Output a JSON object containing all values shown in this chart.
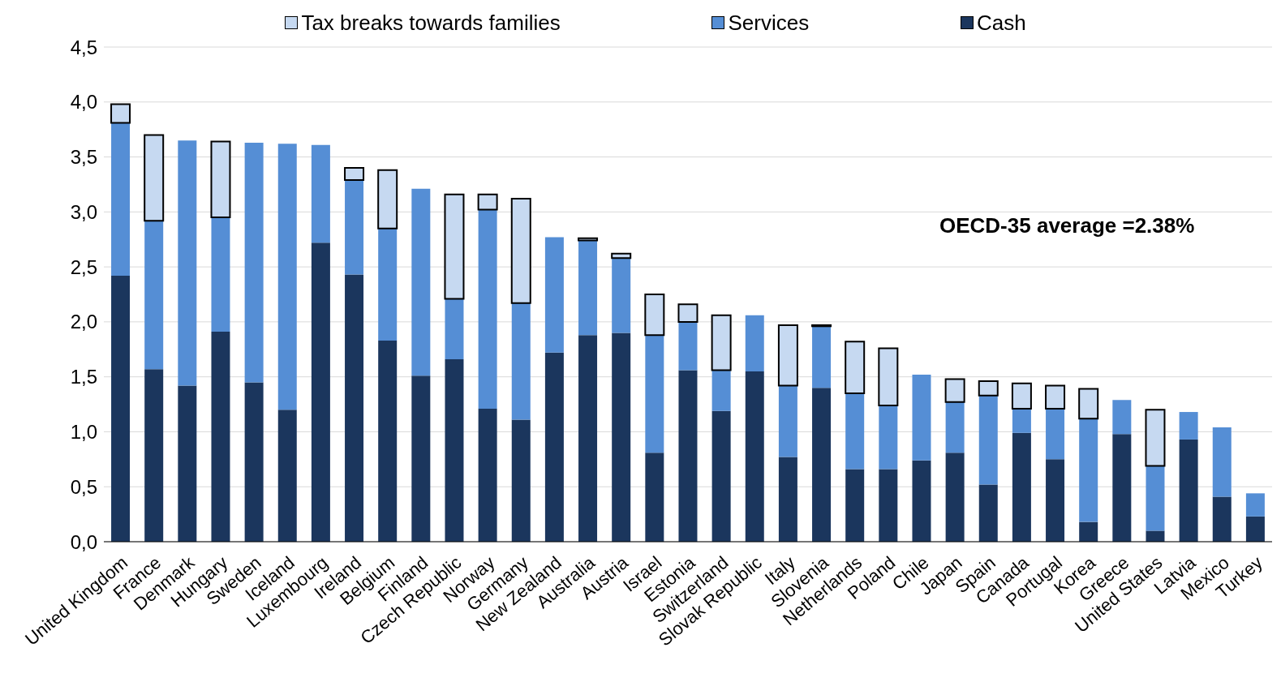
{
  "chart_data": {
    "type": "bar",
    "stacked": true,
    "categories": [
      "United Kingdom",
      "France",
      "Denmark",
      "Hungary",
      "Sweden",
      "Iceland",
      "Luxembourg",
      "Ireland",
      "Belgium",
      "Finland",
      "Czech Republic",
      "Norway",
      "Germany",
      "New Zealand",
      "Australia",
      "Austria",
      "Israel",
      "Estonia",
      "Switzerland",
      "Slovak Republic",
      "Italy",
      "Slovenia",
      "Netherlands",
      "Poland",
      "Chile",
      "Japan",
      "Spain",
      "Canada",
      "Portugal",
      "Korea",
      "Greece",
      "United States",
      "Latvia",
      "Mexico",
      "Turkey"
    ],
    "series": [
      {
        "name": "Cash",
        "color": "#1b365d",
        "values": [
          2.42,
          1.57,
          1.42,
          1.91,
          1.45,
          1.2,
          2.72,
          2.43,
          1.83,
          1.51,
          1.66,
          1.21,
          1.11,
          1.72,
          1.88,
          1.9,
          0.81,
          1.56,
          1.19,
          1.55,
          0.77,
          1.4,
          0.66,
          0.66,
          0.74,
          0.81,
          0.52,
          0.99,
          0.75,
          0.18,
          0.98,
          0.1,
          0.93,
          0.41,
          0.23
        ]
      },
      {
        "name": "Services",
        "color": "#558ed5",
        "values": [
          1.39,
          1.35,
          2.23,
          1.04,
          2.18,
          2.42,
          0.89,
          0.86,
          1.02,
          1.7,
          0.55,
          1.81,
          1.06,
          1.05,
          0.86,
          0.68,
          1.07,
          0.44,
          0.37,
          0.51,
          0.65,
          0.56,
          0.69,
          0.58,
          0.78,
          0.46,
          0.81,
          0.22,
          0.46,
          0.94,
          0.31,
          0.59,
          0.25,
          0.63,
          0.21
        ]
      },
      {
        "name": "Tax breaks towards families",
        "color": "#c6d9f1",
        "values": [
          0.17,
          0.78,
          0,
          0.69,
          0,
          0,
          0,
          0.11,
          0.53,
          0,
          0.95,
          0.14,
          0.95,
          0,
          0.02,
          0.04,
          0.37,
          0.16,
          0.5,
          0,
          0.55,
          0.01,
          0.47,
          0.52,
          0,
          0.21,
          0.13,
          0.23,
          0.21,
          0.27,
          0,
          0.51,
          0,
          0,
          0
        ]
      }
    ],
    "ylim": [
      0,
      4.5
    ],
    "yticks": [
      {
        "value": 0,
        "label": "0,0"
      },
      {
        "value": 0.5,
        "label": "0,5"
      },
      {
        "value": 1,
        "label": "1,0"
      },
      {
        "value": 1.5,
        "label": "1,5"
      },
      {
        "value": 2,
        "label": "2,0"
      },
      {
        "value": 2.5,
        "label": "2,5"
      },
      {
        "value": 3,
        "label": "3,0"
      },
      {
        "value": 3.5,
        "label": "3,5"
      },
      {
        "value": 4,
        "label": "4,0"
      },
      {
        "value": 4.5,
        "label": "4,5"
      }
    ],
    "grid": "y",
    "legend": "top",
    "annotations": [
      "OECD-35 average =2.38%"
    ]
  }
}
